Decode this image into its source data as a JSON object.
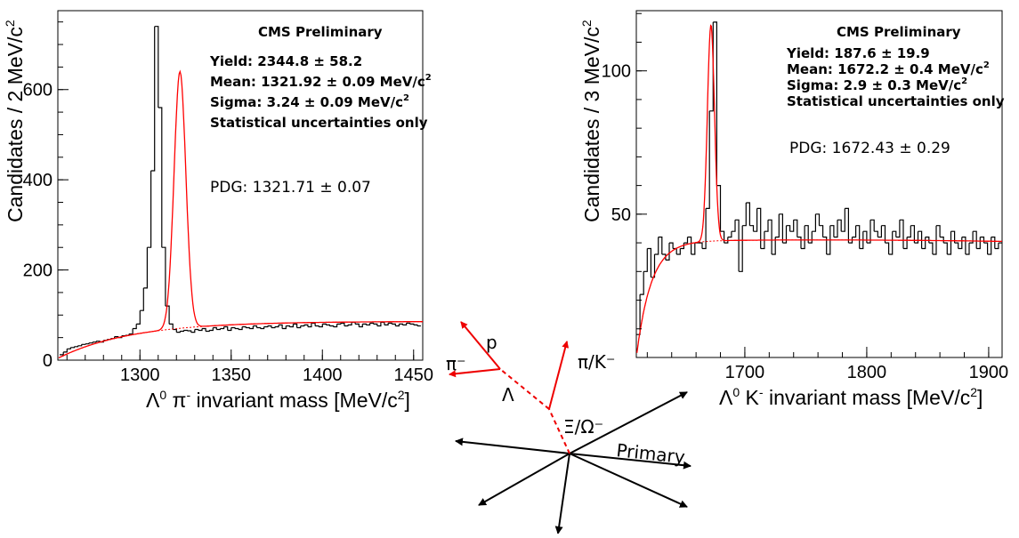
{
  "chart_data": [
    {
      "type": "histogram",
      "id": "xi",
      "xlabel_main": "Λ",
      "xlabel_sup1": "0",
      "xlabel_mid": " π",
      "xlabel_sup2": "-",
      "xlabel_rest": " invariant mass [MeV/c",
      "xlabel_sup3": "2",
      "xlabel_end": "]",
      "ylabel_main": "Candidates / 2 MeV/c",
      "ylabel_sup": "2",
      "xlim": [
        1255,
        1455
      ],
      "ylim": [
        0,
        775
      ],
      "xticks": [
        1300,
        1350,
        1400,
        1450
      ],
      "yticks": [
        0,
        200,
        400,
        600
      ],
      "xtick_labels": [
        "1300",
        "1350",
        "1400",
        "1450"
      ],
      "ytick_labels": [
        "0",
        "200",
        "400",
        "600"
      ],
      "bin_width": 2,
      "bin_start": 1256,
      "values": [
        12,
        18,
        25,
        28,
        30,
        32,
        35,
        36,
        38,
        40,
        42,
        40,
        44,
        46,
        48,
        52,
        50,
        54,
        55,
        58,
        70,
        80,
        110,
        160,
        250,
        420,
        740,
        560,
        250,
        120,
        80,
        68,
        62,
        64,
        66,
        65,
        62,
        68,
        66,
        70,
        64,
        66,
        72,
        68,
        70,
        74,
        66,
        72,
        70,
        68,
        74,
        72,
        70,
        76,
        72,
        70,
        74,
        76,
        72,
        74,
        78,
        70,
        76,
        74,
        80,
        72,
        76,
        78,
        74,
        82,
        76,
        74,
        80,
        78,
        76,
        74,
        80,
        82,
        76,
        78,
        84,
        80,
        74,
        80,
        78,
        82,
        80,
        76,
        84,
        78,
        82,
        80,
        76,
        80,
        78,
        82,
        80,
        78,
        76,
        80
      ],
      "fit": {
        "signal_yield": 2344.8,
        "mean": 1321.92,
        "sigma": 3.24,
        "peak": 640,
        "bkg_plateau": 82
      },
      "annotations": {
        "title": "CMS Preliminary",
        "yield": "Yield: 2344.8 ± 58.2",
        "mean": "Mean: 1321.92 ± 0.09 MeV/c",
        "mean_sup": "2",
        "sigma": "Sigma: 3.24 ± 0.09 MeV/c",
        "sigma_sup": "2",
        "note": "Statistical uncertainties only",
        "pdg": "PDG: 1321.71 ± 0.07"
      }
    },
    {
      "type": "histogram",
      "id": "omega",
      "xlabel_main": "Λ",
      "xlabel_sup1": "0",
      "xlabel_mid": " K",
      "xlabel_sup2": "-",
      "xlabel_rest": " invariant mass [MeV/c",
      "xlabel_sup3": "2",
      "xlabel_end": "]",
      "ylabel_main": "Candidates / 3 MeV/c",
      "ylabel_sup": "2",
      "xlim": [
        1611,
        1911
      ],
      "ylim": [
        0,
        121
      ],
      "xticks": [
        1700,
        1800,
        1900
      ],
      "yticks": [
        50,
        100
      ],
      "xtick_labels": [
        "1700",
        "1800",
        "1900"
      ],
      "ytick_labels": [
        "50",
        "100"
      ],
      "bin_width": 3,
      "bin_start": 1611,
      "values": [
        8,
        22,
        30,
        38,
        28,
        36,
        42,
        36,
        34,
        40,
        38,
        36,
        38,
        40,
        42,
        36,
        40,
        40,
        38,
        52,
        86,
        117,
        60,
        44,
        40,
        42,
        44,
        48,
        30,
        46,
        54,
        46,
        44,
        52,
        38,
        44,
        48,
        36,
        42,
        50,
        40,
        46,
        44,
        48,
        42,
        38,
        46,
        40,
        44,
        50,
        46,
        42,
        36,
        46,
        42,
        48,
        44,
        52,
        40,
        42,
        46,
        38,
        44,
        40,
        48,
        44,
        42,
        46,
        40,
        36,
        44,
        42,
        48,
        38,
        42,
        46,
        40,
        44,
        38,
        42,
        40,
        36,
        46,
        42,
        40,
        36,
        44,
        40,
        38,
        42,
        36,
        40,
        44,
        38,
        42,
        40,
        36,
        42,
        38,
        40
      ],
      "fit": {
        "signal_yield": 187.6,
        "mean": 1672.2,
        "sigma": 2.9,
        "peak": 116,
        "bkg_plateau": 43
      },
      "annotations": {
        "title": "CMS Preliminary",
        "yield": "Yield: 187.6 ± 19.9",
        "mean": "Mean: 1672.2 ± 0.4 MeV/c",
        "mean_sup": "2",
        "sigma": "Sigma: 2.9 ± 0.3 MeV/c",
        "sigma_sup": "2",
        "note": "Statistical uncertainties only",
        "pdg": "PDG: 1672.43 ± 0.29"
      }
    }
  ],
  "diagram": {
    "labels": {
      "p": "p",
      "pi_minus": "π⁻",
      "lambda": "Λ",
      "pi_k": "π/K⁻",
      "xi_omega": "Ξ/Ω⁻",
      "primary": "Primary"
    },
    "colors": {
      "daughter": "#ee0000",
      "primary": "#000000"
    }
  },
  "colors": {
    "histogram": "#000000",
    "fit": "#ff0000",
    "frame": "#000000"
  }
}
